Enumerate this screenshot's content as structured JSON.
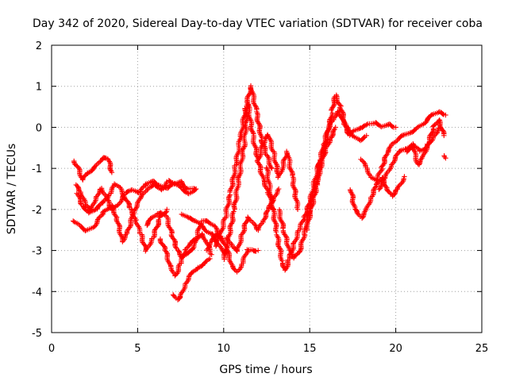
{
  "chart_data": {
    "type": "scatter",
    "title": "Day 342 of 2020, Sidereal Day-to-day VTEC variation (SDTVAR) for receiver coba",
    "xlabel": "GPS time / hours",
    "ylabel": "SDTVAR / TECUs",
    "xlim": [
      0,
      25
    ],
    "ylim": [
      -5,
      2
    ],
    "xticks": [
      "0",
      "5",
      "10",
      "15",
      "20",
      "25"
    ],
    "yticks": [
      "-5",
      "-4",
      "-3",
      "-2",
      "-1",
      "0",
      "1",
      "2"
    ],
    "grid": true,
    "marker": "plus",
    "color": "#ff0000",
    "series": [
      {
        "x": [
          1.3,
          1.5,
          1.8,
          2.1,
          2.4,
          2.7,
          3.0,
          3.3,
          3.5
        ],
        "y": [
          -0.8,
          -0.95,
          -1.3,
          -1.1,
          -1.0,
          -0.9,
          -0.75,
          -0.75,
          -1.1
        ]
      },
      {
        "x": [
          1.3,
          1.6,
          2.0,
          2.5,
          3.0,
          3.5,
          3.8,
          4.1,
          4.4,
          4.8,
          5.2,
          5.6,
          6.0,
          6.4,
          6.8,
          7.2,
          7.6,
          8.0,
          8.4
        ],
        "y": [
          -2.3,
          -2.4,
          -2.5,
          -2.4,
          -2.1,
          -1.9,
          -2.2,
          -2.8,
          -2.6,
          -2.0,
          -1.7,
          -1.5,
          -1.4,
          -1.5,
          -1.3,
          -1.4,
          -1.5,
          -1.6,
          -1.5
        ]
      },
      {
        "x": [
          1.5,
          1.8,
          2.2,
          2.6,
          3.0,
          3.4,
          3.7,
          4.0,
          4.3,
          4.6,
          4.9,
          5.2,
          5.5,
          5.9,
          6.3,
          6.7
        ],
        "y": [
          -1.6,
          -1.9,
          -2.1,
          -2.0,
          -1.8,
          -1.6,
          -1.4,
          -1.5,
          -1.7,
          -2.0,
          -2.3,
          -2.6,
          -3.0,
          -2.7,
          -2.2,
          -2.0
        ]
      },
      {
        "x": [
          1.4,
          1.7,
          2.0,
          2.3,
          2.6,
          2.9,
          3.2,
          3.5,
          3.9,
          4.3,
          4.7,
          5.1,
          5.5,
          5.9,
          6.3,
          6.7,
          7.1,
          7.5,
          7.9,
          8.3
        ],
        "y": [
          -1.4,
          -1.6,
          -1.9,
          -2.0,
          -1.7,
          -1.5,
          -1.7,
          -2.0,
          -1.9,
          -1.6,
          -1.5,
          -1.6,
          -1.4,
          -1.3,
          -1.4,
          -1.5,
          -1.4,
          -1.3,
          -1.5,
          -1.5
        ]
      },
      {
        "x": [
          5.5,
          5.8,
          6.1,
          6.4,
          6.7,
          7.0,
          7.3,
          7.6,
          8.0,
          8.3,
          8.7,
          9.1,
          9.5,
          9.8
        ],
        "y": [
          -2.4,
          -2.2,
          -2.1,
          -2.1,
          -2.2,
          -2.6,
          -3.0,
          -3.2,
          -3.0,
          -2.9,
          -2.3,
          -2.3,
          -2.4,
          -2.7
        ]
      },
      {
        "x": [
          6.3,
          6.6,
          6.9,
          7.2,
          7.5,
          7.8,
          8.1,
          8.4,
          8.7,
          9.0,
          9.3
        ],
        "y": [
          -2.7,
          -3.0,
          -3.4,
          -3.6,
          -3.3,
          -3.0,
          -2.8,
          -2.7,
          -2.6,
          -2.8,
          -3.1
        ]
      },
      {
        "x": [
          7.1,
          7.3,
          7.5,
          7.8,
          8.1,
          8.5,
          8.9,
          9.2
        ],
        "y": [
          -4.1,
          -4.2,
          -4.1,
          -3.8,
          -3.6,
          -3.4,
          -3.3,
          -3.2
        ]
      },
      {
        "x": [
          7.6,
          8.0,
          8.4,
          8.7,
          9.0,
          9.3,
          9.6,
          9.9,
          10.2
        ],
        "y": [
          -2.1,
          -2.2,
          -2.3,
          -2.4,
          -2.5,
          -2.6,
          -2.8,
          -3.0,
          -3.1
        ]
      },
      {
        "x": [
          9.0,
          9.3,
          9.6,
          9.9,
          10.2,
          10.5,
          10.8,
          11.1,
          11.4,
          11.7,
          12.0
        ],
        "y": [
          -3.0,
          -2.8,
          -2.6,
          -2.7,
          -3.0,
          -3.4,
          -3.5,
          -3.3,
          -3.0,
          -3.0,
          -3.0
        ]
      },
      {
        "x": [
          9.5,
          9.8,
          10.1,
          10.4,
          10.7,
          11.0,
          11.3,
          11.6,
          11.9,
          12.2,
          12.5,
          12.8
        ],
        "y": [
          -2.9,
          -2.6,
          -2.2,
          -1.6,
          -0.9,
          -0.2,
          0.5,
          1.0,
          0.4,
          -0.3,
          -0.7,
          -1.0
        ]
      },
      {
        "x": [
          10.0,
          10.3,
          10.6,
          10.9,
          11.2,
          11.4,
          11.7,
          12.0,
          12.3,
          12.6,
          12.9
        ],
        "y": [
          -3.2,
          -2.7,
          -2.0,
          -1.2,
          -0.4,
          0.6,
          -0.2,
          -0.8,
          -1.3,
          -1.6,
          -2.0
        ]
      },
      {
        "x": [
          10.2,
          10.5,
          10.8,
          11.1,
          11.4,
          11.7,
          12.0,
          12.3,
          12.6,
          12.9,
          13.2
        ],
        "y": [
          -2.7,
          -2.9,
          -3.0,
          -2.6,
          -2.2,
          -2.3,
          -2.5,
          -2.3,
          -2.0,
          -1.7,
          -1.5
        ]
      },
      {
        "x": [
          12.0,
          12.3,
          12.6,
          12.9,
          13.2,
          13.4,
          13.7,
          14.0,
          14.3
        ],
        "y": [
          -0.8,
          -0.4,
          -0.2,
          -0.6,
          -1.2,
          -1.0,
          -0.6,
          -1.2,
          -2.0
        ]
      },
      {
        "x": [
          12.5,
          12.8,
          13.1,
          13.4,
          13.6,
          13.8,
          14.1,
          14.4,
          14.7,
          15.0,
          15.3,
          15.6
        ],
        "y": [
          -1.0,
          -1.8,
          -2.6,
          -3.3,
          -3.5,
          -3.2,
          -2.8,
          -2.5,
          -2.2,
          -1.8,
          -1.3,
          -0.8
        ]
      },
      {
        "x": [
          13.2,
          13.5,
          13.8,
          14.1,
          14.4,
          14.7,
          15.0,
          15.3,
          15.6,
          15.9,
          16.2,
          16.5
        ],
        "y": [
          -2.0,
          -2.5,
          -3.0,
          -3.2,
          -3.0,
          -2.6,
          -2.0,
          -1.5,
          -1.0,
          -0.6,
          -0.3,
          0.0
        ]
      },
      {
        "x": [
          14.8,
          15.1,
          15.4,
          15.7,
          16.0,
          16.3,
          16.5,
          16.8,
          17.1,
          17.5,
          17.9,
          18.3
        ],
        "y": [
          -2.5,
          -2.0,
          -1.4,
          -0.8,
          -0.3,
          0.4,
          0.8,
          0.5,
          0.0,
          -0.2,
          -0.3,
          -0.2
        ]
      },
      {
        "x": [
          15.5,
          15.8,
          16.1,
          16.4,
          16.7,
          17.0,
          17.3,
          17.6,
          18.0,
          18.4,
          18.8,
          19.2,
          19.6,
          20.0
        ],
        "y": [
          -1.0,
          -0.4,
          0.0,
          0.2,
          0.4,
          0.1,
          -0.2,
          -0.1,
          0.0,
          0.1,
          0.1,
          0.0,
          0.1,
          0.0
        ]
      },
      {
        "x": [
          17.4,
          17.6,
          17.8,
          18.0,
          18.3,
          18.6,
          18.9,
          19.2,
          19.5,
          19.8,
          20.1,
          20.5
        ],
        "y": [
          -1.5,
          -2.0,
          -2.1,
          -2.2,
          -2.0,
          -1.7,
          -1.4,
          -1.2,
          -1.5,
          -1.7,
          -1.5,
          -1.2
        ]
      },
      {
        "x": [
          18.0,
          18.3,
          18.6,
          18.9,
          19.2,
          19.5,
          19.8,
          20.1,
          20.5,
          20.9,
          21.3,
          21.7,
          22.1,
          22.5,
          22.9
        ],
        "y": [
          -0.8,
          -1.0,
          -1.2,
          -1.3,
          -1.0,
          -0.6,
          -0.4,
          -0.3,
          -0.2,
          -0.1,
          0.0,
          0.1,
          0.3,
          0.4,
          0.3
        ]
      },
      {
        "x": [
          19.0,
          19.4,
          19.8,
          20.2,
          20.6,
          21.0,
          21.4,
          21.8,
          22.2,
          22.6
        ],
        "y": [
          -1.5,
          -1.2,
          -0.9,
          -0.6,
          -0.5,
          -0.4,
          -0.6,
          -0.5,
          -0.2,
          0.0
        ]
      },
      {
        "x": [
          20.6,
          21.0,
          21.3,
          21.6,
          21.9,
          22.2,
          22.5,
          22.8
        ],
        "y": [
          -0.6,
          -0.5,
          -0.9,
          -0.7,
          -0.4,
          0.0,
          0.2,
          -0.2
        ]
      },
      {
        "x": [
          22.8,
          22.9
        ],
        "y": [
          -0.7,
          -0.75
        ]
      }
    ]
  }
}
